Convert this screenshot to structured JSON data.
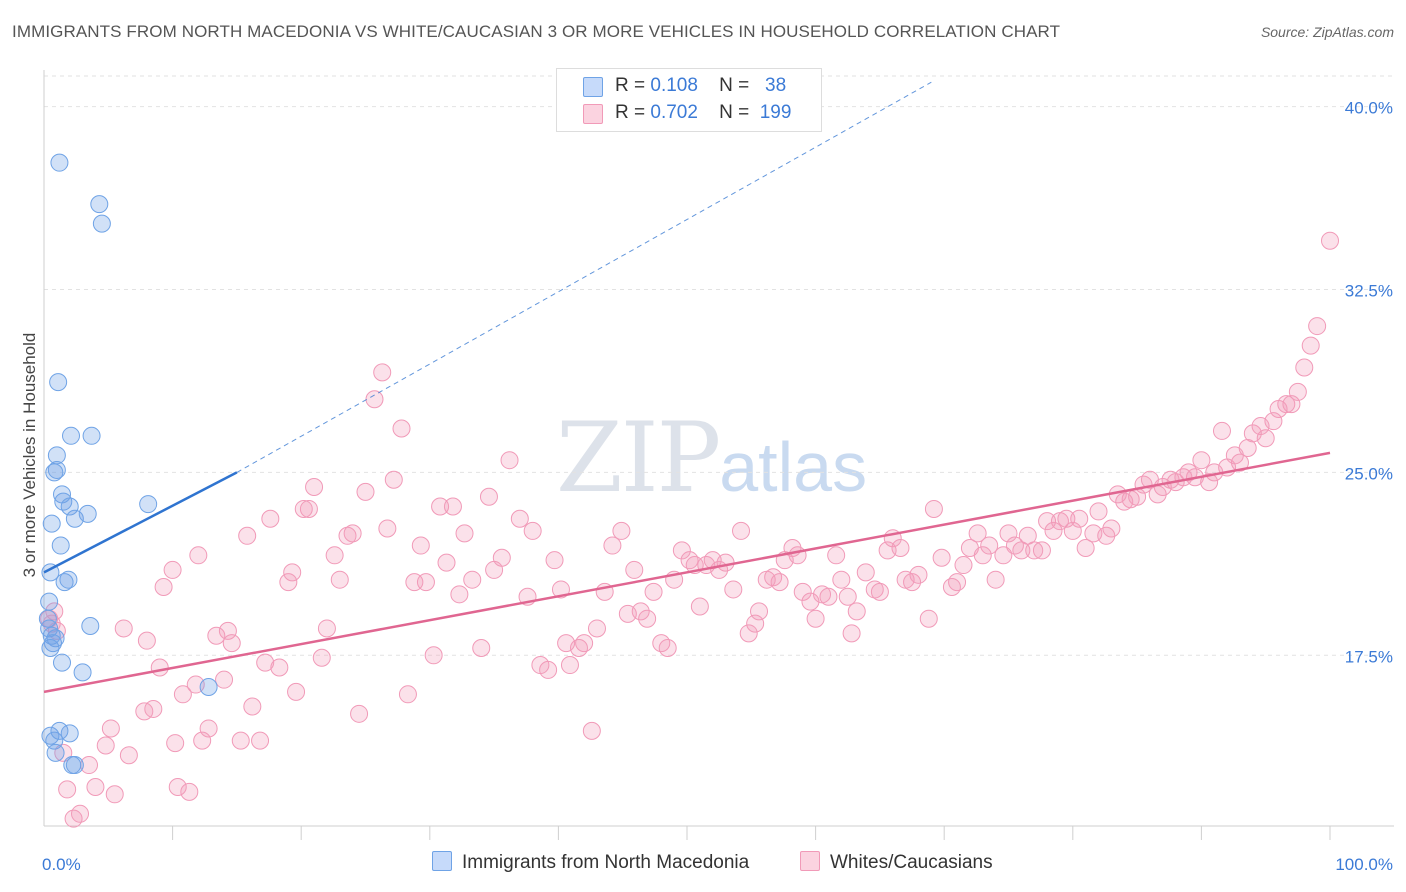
{
  "title": "IMMIGRANTS FROM NORTH MACEDONIA VS WHITE/CAUCASIAN 3 OR MORE VEHICLES IN HOUSEHOLD CORRELATION CHART",
  "source": "Source: ZipAtlas.com",
  "legend": {
    "rows": [
      {
        "r_label": "R =",
        "r_value": "0.108",
        "n_label": "N =",
        "n_value": "38"
      },
      {
        "r_label": "R =",
        "r_value": "0.702",
        "n_label": "N =",
        "n_value": "199"
      }
    ]
  },
  "watermark": {
    "zip": "ZIP",
    "atlas": "atlas"
  },
  "colors": {
    "blue": "#6fa3e6",
    "blue_line": "#2f74d0",
    "pink": "#f19ab8",
    "pink_line": "#e06691",
    "tick_text": "#3b7ad6"
  },
  "chart_data": {
    "type": "scatter",
    "title": "IMMIGRANTS FROM NORTH MACEDONIA VS WHITE/CAUCASIAN 3 OR MORE VEHICLES IN HOUSEHOLD CORRELATION CHART",
    "xlabel": "",
    "ylabel": "3 or more Vehicles in Household",
    "xlim": [
      0,
      100
    ],
    "ylim": [
      10.5,
      41.5
    ],
    "x_tick_labels": [
      "0.0%",
      "100.0%"
    ],
    "y_ticks": [
      17.5,
      25.0,
      32.5,
      40.0
    ],
    "y_tick_labels": [
      "17.5%",
      "25.0%",
      "32.5%",
      "40.0%"
    ],
    "grid": true,
    "legend_position": "top-center",
    "series": [
      {
        "name": "Immigrants from North Macedonia",
        "color": "#6fa3e6",
        "r": 0.108,
        "n": 38,
        "trend": {
          "x": [
            0,
            15
          ],
          "y": [
            20.9,
            25.0
          ],
          "dashed_extension_to": [
            69,
            41
          ]
        },
        "points": [
          [
            1.2,
            37.7
          ],
          [
            4.3,
            36.0
          ],
          [
            4.5,
            35.2
          ],
          [
            1.1,
            28.7
          ],
          [
            2.1,
            26.5
          ],
          [
            3.7,
            26.5
          ],
          [
            1.0,
            25.7
          ],
          [
            1.0,
            25.1
          ],
          [
            0.8,
            25.0
          ],
          [
            1.4,
            24.1
          ],
          [
            1.5,
            23.8
          ],
          [
            2.0,
            23.6
          ],
          [
            2.4,
            23.1
          ],
          [
            3.4,
            23.3
          ],
          [
            8.1,
            23.7
          ],
          [
            0.6,
            22.9
          ],
          [
            1.3,
            22.0
          ],
          [
            0.5,
            20.9
          ],
          [
            1.6,
            20.5
          ],
          [
            1.9,
            20.6
          ],
          [
            0.4,
            19.7
          ],
          [
            0.3,
            19.0
          ],
          [
            0.4,
            18.6
          ],
          [
            0.6,
            18.3
          ],
          [
            0.9,
            18.2
          ],
          [
            0.7,
            18.0
          ],
          [
            0.5,
            17.8
          ],
          [
            3.6,
            18.7
          ],
          [
            1.4,
            17.2
          ],
          [
            3.0,
            16.8
          ],
          [
            12.8,
            16.2
          ],
          [
            0.5,
            14.2
          ],
          [
            0.8,
            14.0
          ],
          [
            1.2,
            14.4
          ],
          [
            2.0,
            14.3
          ],
          [
            0.9,
            13.5
          ],
          [
            2.2,
            13.0
          ],
          [
            2.4,
            13.0
          ]
        ]
      },
      {
        "name": "Whites/Caucasians",
        "color": "#f19ab8",
        "r": 0.702,
        "n": 199,
        "trend": {
          "x": [
            0,
            100
          ],
          "y": [
            16.0,
            25.8
          ]
        },
        "points": [
          [
            0.4,
            19.0
          ],
          [
            0.6,
            18.8
          ],
          [
            0.8,
            19.3
          ],
          [
            1.0,
            18.5
          ],
          [
            1.5,
            13.5
          ],
          [
            1.8,
            12.0
          ],
          [
            2.3,
            10.8
          ],
          [
            2.8,
            11.0
          ],
          [
            3.5,
            13.0
          ],
          [
            4.0,
            12.1
          ],
          [
            4.8,
            13.8
          ],
          [
            5.2,
            14.5
          ],
          [
            5.5,
            11.8
          ],
          [
            6.2,
            18.6
          ],
          [
            6.6,
            13.4
          ],
          [
            7.8,
            15.2
          ],
          [
            8.0,
            18.1
          ],
          [
            8.5,
            15.3
          ],
          [
            9.0,
            17.0
          ],
          [
            9.3,
            20.3
          ],
          [
            10.0,
            21.0
          ],
          [
            10.2,
            13.9
          ],
          [
            10.4,
            12.1
          ],
          [
            10.8,
            15.9
          ],
          [
            11.3,
            11.9
          ],
          [
            11.8,
            16.3
          ],
          [
            12.0,
            21.6
          ],
          [
            12.3,
            14.0
          ],
          [
            12.8,
            14.5
          ],
          [
            13.4,
            18.3
          ],
          [
            14.0,
            16.5
          ],
          [
            14.6,
            18.0
          ],
          [
            14.3,
            18.5
          ],
          [
            15.3,
            14.0
          ],
          [
            15.8,
            22.4
          ],
          [
            16.2,
            15.4
          ],
          [
            16.8,
            14.0
          ],
          [
            17.2,
            17.2
          ],
          [
            17.6,
            23.1
          ],
          [
            18.3,
            17.0
          ],
          [
            19.0,
            20.5
          ],
          [
            19.3,
            20.9
          ],
          [
            19.6,
            16.0
          ],
          [
            20.2,
            23.5
          ],
          [
            20.6,
            23.5
          ],
          [
            21.0,
            24.4
          ],
          [
            21.6,
            17.4
          ],
          [
            22.0,
            18.6
          ],
          [
            22.6,
            21.6
          ],
          [
            23.0,
            20.6
          ],
          [
            23.6,
            22.4
          ],
          [
            24.0,
            22.5
          ],
          [
            24.5,
            15.1
          ],
          [
            25.0,
            24.2
          ],
          [
            25.7,
            28.0
          ],
          [
            26.3,
            29.1
          ],
          [
            26.7,
            22.7
          ],
          [
            27.2,
            24.7
          ],
          [
            27.8,
            26.8
          ],
          [
            28.3,
            15.9
          ],
          [
            28.8,
            20.5
          ],
          [
            29.3,
            22.0
          ],
          [
            29.7,
            20.5
          ],
          [
            30.3,
            17.5
          ],
          [
            30.8,
            23.6
          ],
          [
            31.3,
            21.3
          ],
          [
            31.8,
            23.6
          ],
          [
            32.3,
            20.0
          ],
          [
            32.7,
            22.5
          ],
          [
            33.3,
            20.6
          ],
          [
            34.0,
            17.8
          ],
          [
            34.6,
            24.0
          ],
          [
            35.0,
            21.0
          ],
          [
            35.6,
            21.5
          ],
          [
            36.2,
            25.5
          ],
          [
            37.0,
            23.1
          ],
          [
            37.6,
            19.9
          ],
          [
            38.0,
            22.6
          ],
          [
            38.6,
            17.1
          ],
          [
            39.2,
            16.9
          ],
          [
            39.7,
            21.4
          ],
          [
            40.2,
            20.2
          ],
          [
            40.6,
            18.0
          ],
          [
            40.9,
            17.1
          ],
          [
            41.6,
            17.8
          ],
          [
            42.0,
            18.0
          ],
          [
            42.6,
            14.4
          ],
          [
            43.0,
            18.6
          ],
          [
            43.6,
            20.1
          ],
          [
            44.2,
            22.0
          ],
          [
            44.9,
            22.6
          ],
          [
            45.4,
            19.2
          ],
          [
            45.9,
            21.0
          ],
          [
            46.4,
            19.3
          ],
          [
            46.9,
            19.0
          ],
          [
            47.4,
            20.1
          ],
          [
            48.0,
            18.0
          ],
          [
            48.5,
            17.8
          ],
          [
            49.0,
            20.6
          ],
          [
            49.6,
            21.8
          ],
          [
            50.2,
            21.4
          ],
          [
            50.6,
            21.2
          ],
          [
            51.0,
            19.5
          ],
          [
            51.5,
            21.2
          ],
          [
            52.0,
            21.4
          ],
          [
            52.5,
            21.0
          ],
          [
            53.0,
            21.3
          ],
          [
            53.6,
            20.2
          ],
          [
            54.2,
            22.6
          ],
          [
            54.8,
            18.4
          ],
          [
            55.3,
            18.8
          ],
          [
            55.6,
            19.3
          ],
          [
            56.2,
            20.6
          ],
          [
            56.7,
            20.7
          ],
          [
            57.2,
            20.5
          ],
          [
            57.6,
            21.4
          ],
          [
            58.2,
            21.9
          ],
          [
            58.6,
            21.6
          ],
          [
            59.0,
            20.1
          ],
          [
            59.6,
            19.7
          ],
          [
            60.0,
            19.0
          ],
          [
            60.5,
            20.0
          ],
          [
            61.0,
            19.9
          ],
          [
            61.6,
            21.6
          ],
          [
            62.0,
            20.6
          ],
          [
            62.5,
            19.9
          ],
          [
            62.8,
            18.4
          ],
          [
            63.2,
            19.3
          ],
          [
            63.9,
            20.9
          ],
          [
            64.6,
            20.2
          ],
          [
            65.0,
            20.1
          ],
          [
            65.6,
            21.8
          ],
          [
            66.0,
            22.3
          ],
          [
            66.6,
            21.9
          ],
          [
            67.0,
            20.6
          ],
          [
            67.5,
            20.5
          ],
          [
            68.0,
            20.8
          ],
          [
            68.8,
            19.0
          ],
          [
            69.2,
            23.5
          ],
          [
            69.8,
            21.5
          ],
          [
            70.6,
            20.3
          ],
          [
            71.0,
            20.5
          ],
          [
            71.5,
            21.2
          ],
          [
            72.0,
            21.9
          ],
          [
            72.6,
            22.5
          ],
          [
            73.0,
            21.6
          ],
          [
            73.5,
            22.0
          ],
          [
            74.0,
            20.6
          ],
          [
            74.6,
            21.6
          ],
          [
            75.0,
            22.5
          ],
          [
            75.5,
            22.0
          ],
          [
            76.0,
            21.8
          ],
          [
            76.5,
            22.4
          ],
          [
            77.0,
            21.8
          ],
          [
            77.6,
            21.8
          ],
          [
            78.0,
            23.0
          ],
          [
            78.5,
            22.6
          ],
          [
            79.0,
            23.0
          ],
          [
            79.5,
            23.1
          ],
          [
            80.0,
            22.6
          ],
          [
            80.5,
            23.1
          ],
          [
            81.0,
            21.9
          ],
          [
            81.6,
            22.5
          ],
          [
            82.0,
            23.4
          ],
          [
            82.6,
            22.4
          ],
          [
            83.0,
            22.7
          ],
          [
            83.5,
            24.1
          ],
          [
            84.0,
            23.8
          ],
          [
            84.5,
            23.9
          ],
          [
            85.0,
            24.0
          ],
          [
            85.5,
            24.5
          ],
          [
            86.0,
            24.7
          ],
          [
            86.6,
            24.1
          ],
          [
            87.0,
            24.4
          ],
          [
            87.6,
            24.7
          ],
          [
            88.0,
            24.6
          ],
          [
            88.6,
            24.8
          ],
          [
            89.0,
            25.0
          ],
          [
            89.5,
            24.8
          ],
          [
            90.0,
            25.5
          ],
          [
            90.6,
            24.6
          ],
          [
            91.0,
            25.0
          ],
          [
            91.6,
            26.7
          ],
          [
            92.0,
            25.2
          ],
          [
            92.6,
            25.7
          ],
          [
            93.0,
            25.4
          ],
          [
            93.6,
            26.0
          ],
          [
            94.0,
            26.6
          ],
          [
            94.6,
            26.9
          ],
          [
            95.0,
            26.4
          ],
          [
            95.6,
            27.1
          ],
          [
            96.0,
            27.6
          ],
          [
            96.6,
            27.8
          ],
          [
            97.0,
            27.8
          ],
          [
            97.5,
            28.3
          ],
          [
            98.0,
            29.3
          ],
          [
            98.5,
            30.2
          ],
          [
            99.0,
            31.0
          ],
          [
            100.0,
            34.5
          ]
        ]
      }
    ]
  }
}
